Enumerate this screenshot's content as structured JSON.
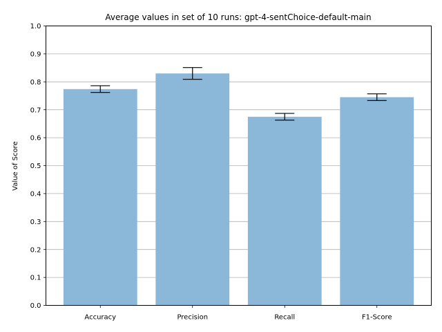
{
  "chart_data": {
    "type": "bar",
    "title": "Average values in set of 10 runs: gpt-4-sentChoice-default-main",
    "xlabel": "",
    "ylabel": "Value of Score",
    "categories": [
      "Accuracy",
      "Precision",
      "Recall",
      "F1-Score"
    ],
    "values": [
      0.774,
      0.83,
      0.675,
      0.745
    ],
    "error": [
      0.012,
      0.021,
      0.012,
      0.012
    ],
    "ylim": [
      0,
      1.0
    ],
    "yticks": [
      "0.0",
      "0.1",
      "0.2",
      "0.3",
      "0.4",
      "0.5",
      "0.6",
      "0.7",
      "0.8",
      "0.9",
      "1.0"
    ],
    "grid": "y",
    "bar_color": "#8bb8d8",
    "grid_color": "#b0b0b0",
    "error_color": "#000000"
  }
}
